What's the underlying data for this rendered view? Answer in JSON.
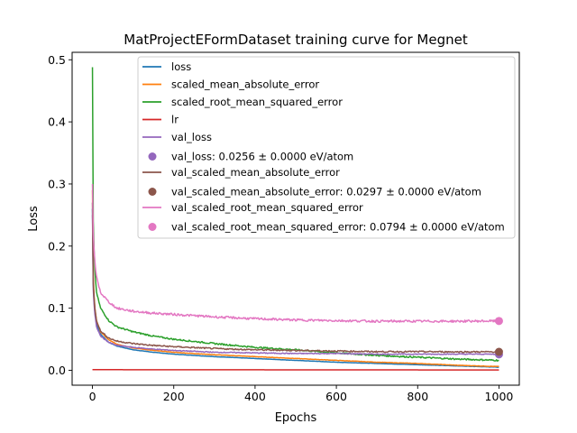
{
  "chart_data": {
    "type": "line",
    "title": "MatProjectEFormDataset training curve for Megnet",
    "xlabel": "Epochs",
    "ylabel": "Loss",
    "xlim": [
      -50,
      1050
    ],
    "ylim": [
      -0.024,
      0.512
    ],
    "xticks": [
      0,
      200,
      400,
      600,
      800,
      1000
    ],
    "yticks": [
      0.0,
      0.1,
      0.2,
      0.3,
      0.4,
      0.5
    ],
    "legend_position": "top-right",
    "series": [
      {
        "name": "loss",
        "color": "#1f77b4",
        "kind": "line",
        "x": [
          0,
          2,
          5,
          10,
          20,
          40,
          60,
          100,
          150,
          200,
          300,
          400,
          500,
          600,
          700,
          800,
          900,
          1000
        ],
        "y": [
          0.26,
          0.14,
          0.1,
          0.075,
          0.058,
          0.045,
          0.039,
          0.033,
          0.029,
          0.026,
          0.022,
          0.019,
          0.016,
          0.013,
          0.011,
          0.009,
          0.007,
          0.005
        ]
      },
      {
        "name": "scaled_mean_absolute_error",
        "color": "#ff7f0e",
        "kind": "line",
        "x": [
          0,
          2,
          5,
          10,
          20,
          40,
          60,
          100,
          150,
          200,
          300,
          400,
          500,
          600,
          700,
          800,
          900,
          1000
        ],
        "y": [
          0.29,
          0.15,
          0.105,
          0.08,
          0.062,
          0.049,
          0.042,
          0.036,
          0.032,
          0.029,
          0.025,
          0.022,
          0.019,
          0.016,
          0.013,
          0.011,
          0.008,
          0.006
        ]
      },
      {
        "name": "scaled_root_mean_squared_error",
        "color": "#2ca02c",
        "kind": "line",
        "x": [
          0,
          2,
          5,
          10,
          20,
          40,
          60,
          100,
          150,
          200,
          300,
          400,
          500,
          600,
          700,
          800,
          900,
          1000
        ],
        "y": [
          0.488,
          0.24,
          0.17,
          0.125,
          0.1,
          0.08,
          0.07,
          0.062,
          0.055,
          0.05,
          0.043,
          0.037,
          0.033,
          0.028,
          0.024,
          0.021,
          0.018,
          0.016
        ]
      },
      {
        "name": "lr",
        "color": "#d62728",
        "kind": "line",
        "x": [
          0,
          1000
        ],
        "y": [
          0.001,
          0.0005
        ]
      },
      {
        "name": "val_loss",
        "color": "#9467bd",
        "kind": "line",
        "x": [
          0,
          2,
          5,
          10,
          20,
          40,
          60,
          100,
          150,
          200,
          300,
          400,
          500,
          600,
          700,
          800,
          900,
          1000
        ],
        "y": [
          0.25,
          0.13,
          0.095,
          0.07,
          0.055,
          0.045,
          0.04,
          0.037,
          0.034,
          0.032,
          0.029,
          0.028,
          0.027,
          0.027,
          0.026,
          0.026,
          0.026,
          0.026
        ]
      },
      {
        "name": "val_loss: 0.0256 ± 0.0000 eV/atom",
        "color": "#9467bd",
        "kind": "point",
        "x": [
          1000
        ],
        "y": [
          0.0256
        ]
      },
      {
        "name": "val_scaled_mean_absolute_error",
        "color": "#8c564b",
        "kind": "line",
        "x": [
          0,
          2,
          5,
          10,
          20,
          40,
          60,
          100,
          150,
          200,
          300,
          400,
          500,
          600,
          700,
          800,
          900,
          1000
        ],
        "y": [
          0.27,
          0.14,
          0.105,
          0.08,
          0.063,
          0.052,
          0.047,
          0.043,
          0.04,
          0.038,
          0.035,
          0.033,
          0.032,
          0.031,
          0.03,
          0.03,
          0.0297,
          0.0297
        ]
      },
      {
        "name": "val_scaled_mean_absolute_error: 0.0297 ± 0.0000 eV/atom",
        "color": "#8c564b",
        "kind": "point",
        "x": [
          1000
        ],
        "y": [
          0.0297
        ]
      },
      {
        "name": "val_scaled_root_mean_squared_error",
        "color": "#e377c2",
        "kind": "line",
        "x": [
          0,
          2,
          5,
          10,
          20,
          40,
          60,
          100,
          150,
          200,
          300,
          400,
          500,
          600,
          700,
          800,
          900,
          1000
        ],
        "y": [
          0.3,
          0.22,
          0.18,
          0.15,
          0.125,
          0.11,
          0.1,
          0.095,
          0.092,
          0.09,
          0.086,
          0.083,
          0.081,
          0.08,
          0.079,
          0.079,
          0.079,
          0.0794
        ]
      },
      {
        "name": "val_scaled_root_mean_squared_error: 0.0794 ± 0.0000 eV/atom",
        "color": "#e377c2",
        "kind": "point",
        "x": [
          1000
        ],
        "y": [
          0.0794
        ]
      }
    ]
  }
}
